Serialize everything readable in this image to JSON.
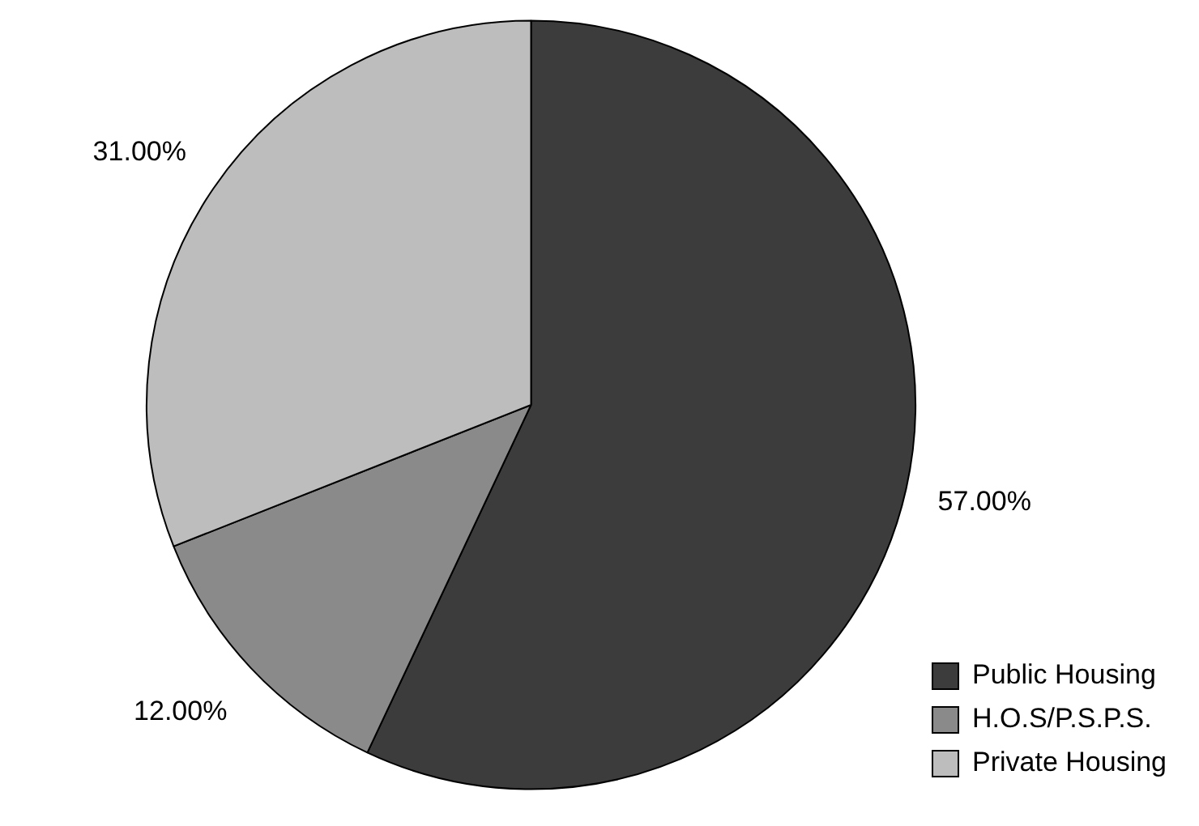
{
  "chart_data": {
    "type": "pie",
    "categories": [
      "Public Housing",
      "H.O.S/P.S.P.S.",
      "Private Housing"
    ],
    "values": [
      57,
      12,
      31
    ],
    "value_labels": [
      "57.00%",
      "12.00%",
      "31.00%"
    ],
    "colors": [
      "#3c3c3c",
      "#8a8a8a",
      "#bdbdbd"
    ],
    "legend": "bottom right"
  }
}
